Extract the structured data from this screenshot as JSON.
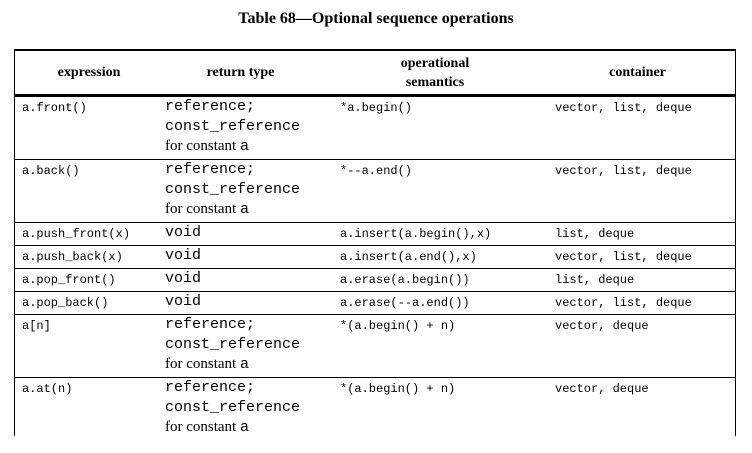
{
  "caption": "Table 68—Optional sequence operations",
  "headers": {
    "expression": "expression",
    "return_type": "return type",
    "semantics_line1": "operational",
    "semantics_line2": "semantics",
    "container": "container"
  },
  "rows": [
    {
      "expression": "a.front()",
      "return_type": [
        "reference;",
        "const_reference"
      ],
      "return_note": "for constant",
      "return_note_var": "a",
      "semantics": "*a.begin()",
      "container": "vector, list, deque"
    },
    {
      "expression": "a.back()",
      "return_type": [
        "reference;",
        "const_reference"
      ],
      "return_note": "for constant",
      "return_note_var": "a",
      "semantics": "*--a.end()",
      "container": "vector, list, deque"
    },
    {
      "expression": "a.push_front(x)",
      "return_type": [
        "void"
      ],
      "semantics": "a.insert(a.begin(),x)",
      "container": "list, deque"
    },
    {
      "expression": "a.push_back(x)",
      "return_type": [
        "void"
      ],
      "semantics": "a.insert(a.end(),x)",
      "container": "vector, list, deque"
    },
    {
      "expression": "a.pop_front()",
      "return_type": [
        "void"
      ],
      "semantics": "a.erase(a.begin())",
      "container": "list, deque"
    },
    {
      "expression": "a.pop_back()",
      "return_type": [
        "void"
      ],
      "semantics": "a.erase(--a.end())",
      "container": "vector, list, deque"
    },
    {
      "expression": "a[n]",
      "return_type": [
        "reference;",
        "const_reference"
      ],
      "return_note": "for constant",
      "return_note_var": "a",
      "semantics": "*(a.begin() + n)",
      "container": "vector, deque"
    },
    {
      "expression": "a.at(n)",
      "return_type": [
        "reference;",
        "const_reference"
      ],
      "return_note": "for constant",
      "return_note_var": "a",
      "semantics": "*(a.begin() + n)",
      "container": "vector, deque"
    }
  ]
}
